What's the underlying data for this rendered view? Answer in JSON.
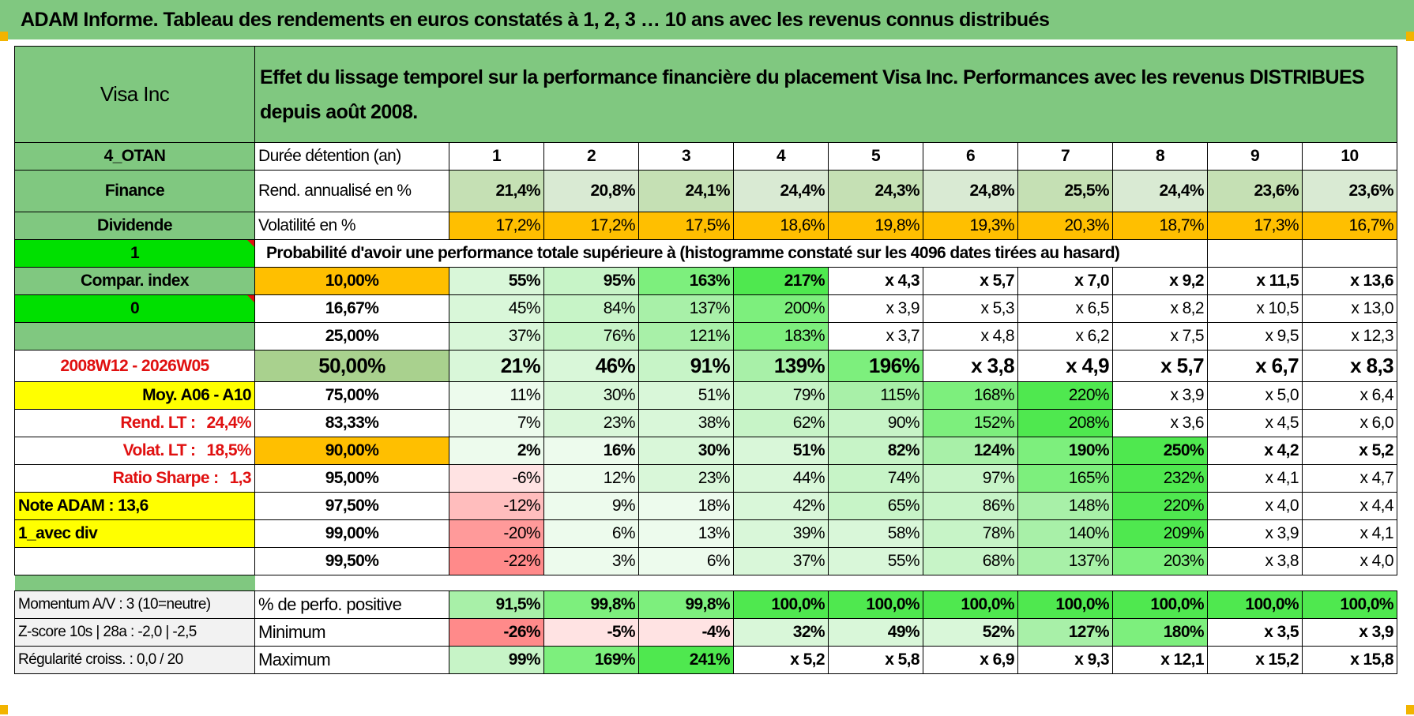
{
  "title": "ADAM Informe. Tableau des rendements en euros constatés à 1, 2, 3 … 10 ans avec les revenus connus distribués",
  "header": {
    "name": "Visa Inc",
    "description": "Effet du lissage temporel sur la performance financière du placement Visa Inc. Performances avec les revenus DISTRIBUES depuis août 2008."
  },
  "left_labels": {
    "code": "4_OTAN",
    "sector": "Finance",
    "type": "Dividende",
    "flag1": "1",
    "compar": "Compar. index",
    "flag0": "0",
    "period": "2008W12 - 2026W05",
    "moy": "Moy. A06 - A10",
    "rend_lt_label": "Rend. LT :",
    "rend_lt_value": "24,4%",
    "volat_lt_label": "Volat. LT :",
    "volat_lt_value": "18,5%",
    "sharpe_label": "Ratio Sharpe :",
    "sharpe_value": "1,3",
    "note": "Note ADAM : 13,6",
    "avec_div": "1_avec div",
    "momentum": "Momentum A/V : 3 (10=neutre)",
    "zscore": "Z-score 10s | 28a : -2,0 | -2,5",
    "regularite": "Régularité croiss. : 0,0 / 20"
  },
  "holding": {
    "label": "Durée détention (an)",
    "years": [
      "1",
      "2",
      "3",
      "4",
      "5",
      "6",
      "7",
      "8",
      "9",
      "10"
    ]
  },
  "rend": {
    "label": "Rend. annualisé en %",
    "values": [
      "21,4%",
      "20,8%",
      "24,1%",
      "24,4%",
      "24,3%",
      "24,8%",
      "25,5%",
      "24,4%",
      "23,6%",
      "23,6%"
    ]
  },
  "volat": {
    "label": "Volatilité en %",
    "values": [
      "17,2%",
      "17,2%",
      "17,5%",
      "18,6%",
      "19,8%",
      "19,3%",
      "20,3%",
      "18,7%",
      "17,3%",
      "16,7%"
    ]
  },
  "probability_title": "Probabilité d'avoir une performance totale supérieure à (histogramme constaté sur les 4096 dates tirées au hasard)",
  "quantiles": [
    {
      "pct": "10,00%",
      "values": [
        "55%",
        "95%",
        "163%",
        "217%",
        "x 4,3",
        "x 5,7",
        "x 7,0",
        "x 9,2",
        "x 11,5",
        "x 13,6"
      ]
    },
    {
      "pct": "16,67%",
      "values": [
        "45%",
        "84%",
        "137%",
        "200%",
        "x 3,9",
        "x 5,3",
        "x 6,5",
        "x 8,2",
        "x 10,5",
        "x 13,0"
      ]
    },
    {
      "pct": "25,00%",
      "values": [
        "37%",
        "76%",
        "121%",
        "183%",
        "x 3,7",
        "x 4,8",
        "x 6,2",
        "x 7,5",
        "x 9,5",
        "x 12,3"
      ]
    },
    {
      "pct": "50,00%",
      "values": [
        "21%",
        "46%",
        "91%",
        "139%",
        "196%",
        "x 3,8",
        "x 4,9",
        "x 5,7",
        "x 6,7",
        "x 8,3"
      ]
    },
    {
      "pct": "75,00%",
      "values": [
        "11%",
        "30%",
        "51%",
        "79%",
        "115%",
        "168%",
        "220%",
        "x 3,9",
        "x 5,0",
        "x 6,4"
      ]
    },
    {
      "pct": "83,33%",
      "values": [
        "7%",
        "23%",
        "38%",
        "62%",
        "90%",
        "152%",
        "208%",
        "x 3,6",
        "x 4,5",
        "x 6,0"
      ]
    },
    {
      "pct": "90,00%",
      "values": [
        "2%",
        "16%",
        "30%",
        "51%",
        "82%",
        "124%",
        "190%",
        "250%",
        "x 4,2",
        "x 5,2"
      ]
    },
    {
      "pct": "95,00%",
      "values": [
        "-6%",
        "12%",
        "23%",
        "44%",
        "74%",
        "97%",
        "165%",
        "232%",
        "x 4,1",
        "x 4,7"
      ]
    },
    {
      "pct": "97,50%",
      "values": [
        "-12%",
        "9%",
        "18%",
        "42%",
        "65%",
        "86%",
        "148%",
        "220%",
        "x 4,0",
        "x 4,4"
      ]
    },
    {
      "pct": "99,00%",
      "values": [
        "-20%",
        "6%",
        "13%",
        "39%",
        "58%",
        "78%",
        "140%",
        "209%",
        "x 3,9",
        "x 4,1"
      ]
    },
    {
      "pct": "99,50%",
      "values": [
        "-22%",
        "3%",
        "6%",
        "37%",
        "55%",
        "68%",
        "137%",
        "203%",
        "x 3,8",
        "x 4,0"
      ]
    }
  ],
  "summary": [
    {
      "label": "% de perfo. positive",
      "values": [
        "91,5%",
        "99,8%",
        "99,8%",
        "100,0%",
        "100,0%",
        "100,0%",
        "100,0%",
        "100,0%",
        "100,0%",
        "100,0%"
      ]
    },
    {
      "label": "Minimum",
      "values": [
        "-26%",
        "-5%",
        "-4%",
        "32%",
        "49%",
        "52%",
        "127%",
        "180%",
        "x 3,5",
        "x 3,9"
      ]
    },
    {
      "label": "Maximum",
      "values": [
        "99%",
        "169%",
        "241%",
        "x 5,2",
        "x 5,8",
        "x 6,9",
        "x 9,3",
        "x 12,1",
        "x 15,2",
        "x 15,8"
      ]
    }
  ]
}
